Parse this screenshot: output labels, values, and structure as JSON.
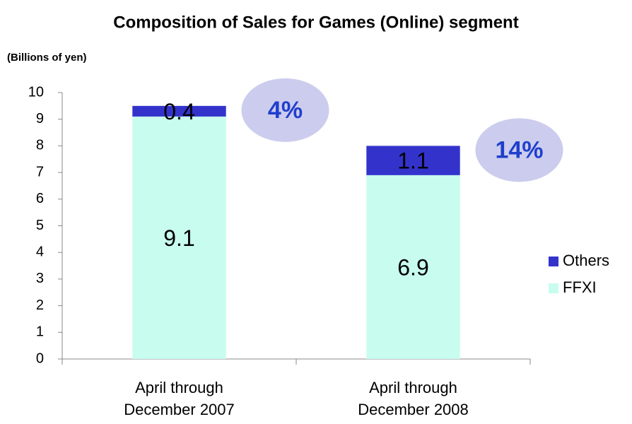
{
  "chart_data": {
    "type": "stacked_bar",
    "title": "Composition of Sales for Games (Online) segment",
    "y_label": "(Billions of yen)",
    "categories": [
      [
        "April through",
        "December 2007"
      ],
      [
        "April through",
        "December 2008"
      ]
    ],
    "series": [
      {
        "name": "FFXI",
        "color": "#c8fcee",
        "values": [
          9.1,
          6.9
        ]
      },
      {
        "name": "Others",
        "color": "#3333cc",
        "values": [
          0.4,
          1.1
        ]
      }
    ],
    "annotations": [
      "4%",
      "14%"
    ],
    "ylim": [
      0,
      10
    ],
    "yticks": [
      0,
      1,
      2,
      3,
      4,
      5,
      6,
      7,
      8,
      9,
      10
    ],
    "legend": "right"
  }
}
